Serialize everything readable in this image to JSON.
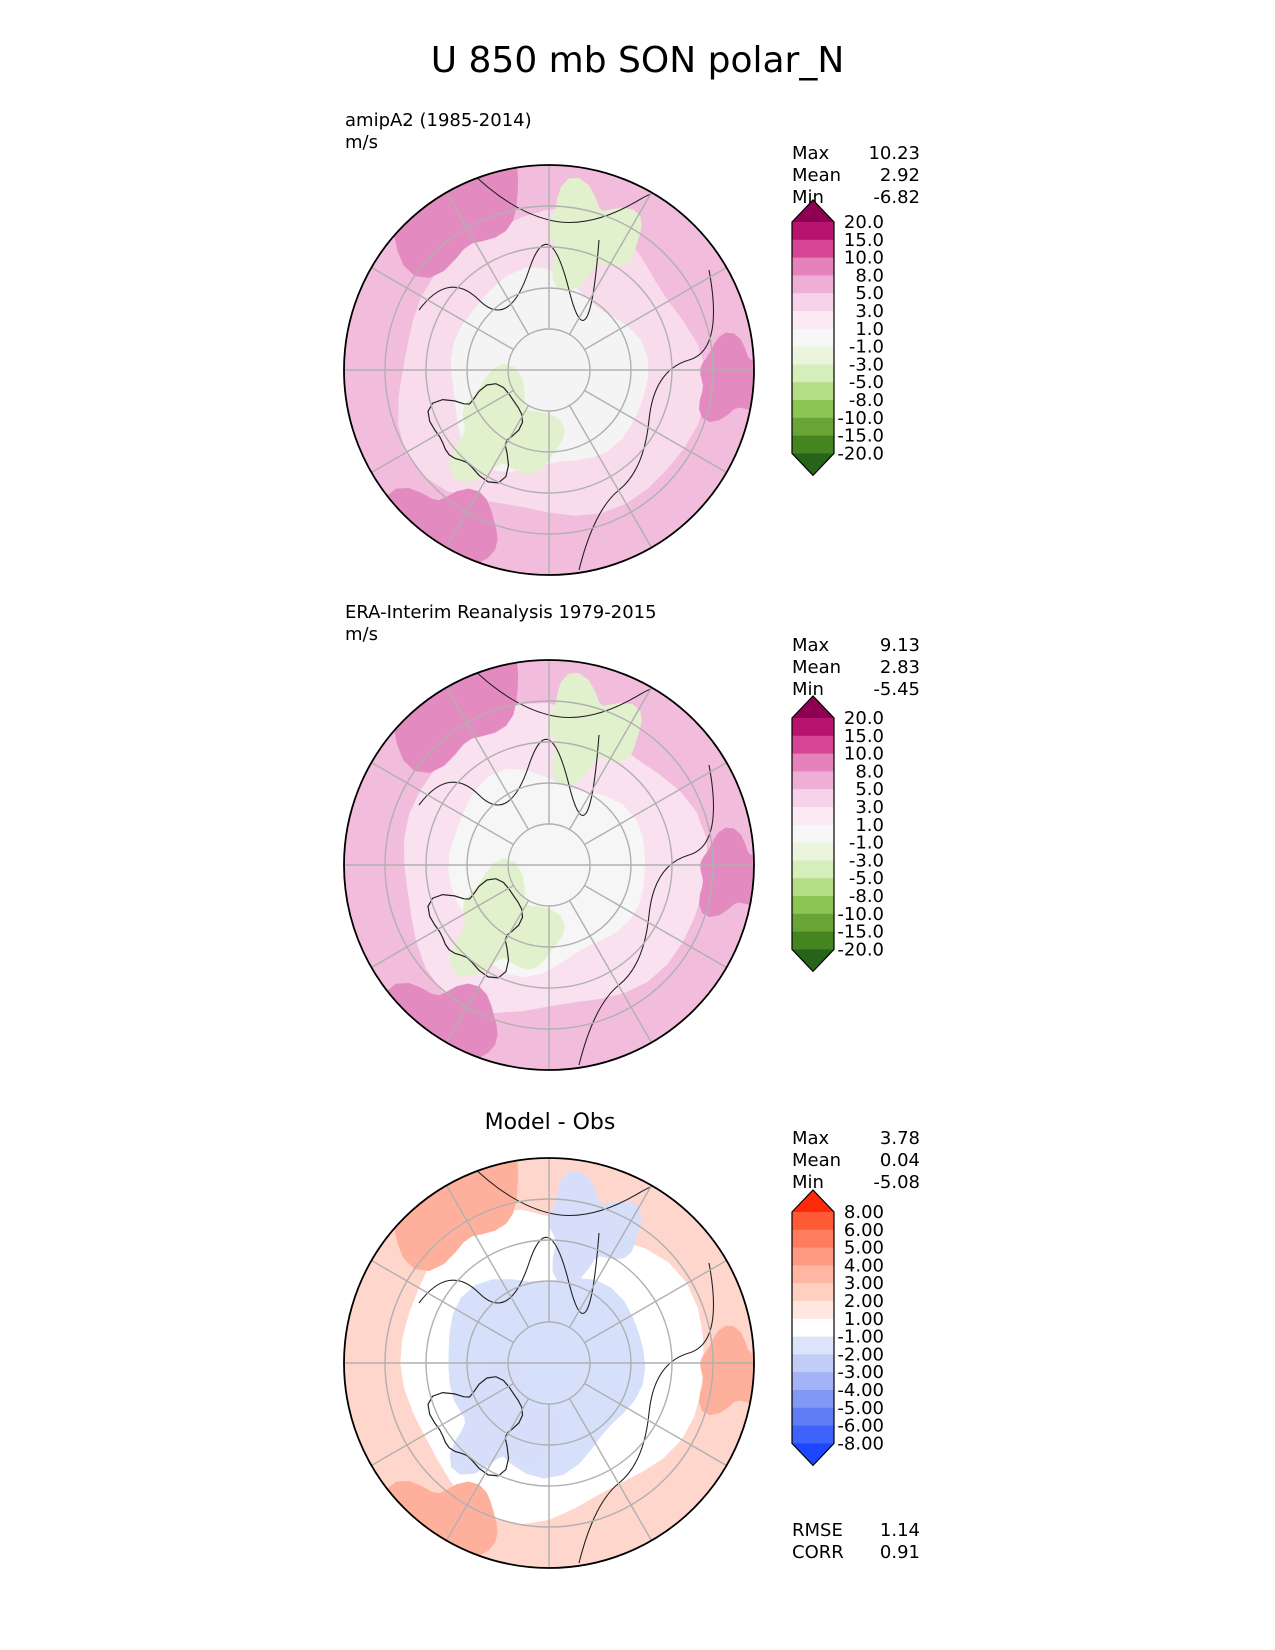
{
  "figure_title": "U 850 mb SON polar_N",
  "chart_data": [
    {
      "type": "polar_contour_map",
      "label": "amipA2 (1985-2014)",
      "units": "m/s",
      "stats": [
        {
          "name": "Max",
          "value": "10.23"
        },
        {
          "name": "Mean",
          "value": "2.92"
        },
        {
          "name": "Min",
          "value": "-6.82"
        }
      ],
      "colorbar": {
        "levels": [
          "20.0",
          "15.0",
          "10.0",
          "8.0",
          "5.0",
          "3.0",
          "1.0",
          "-1.0",
          "-3.0",
          "-5.0",
          "-8.0",
          "-10.0",
          "-15.0",
          "-20.0"
        ],
        "colors": [
          "#8e0152",
          "#b8136f",
          "#d64594",
          "#e582bc",
          "#eeaed5",
          "#f7d3ea",
          "#fbe9f3",
          "#f7f7f7",
          "#ebf5dc",
          "#d6eebb",
          "#b3de85",
          "#8dc552",
          "#68a535",
          "#44851f",
          "#276419"
        ],
        "extend": "both"
      },
      "fill_colors": {
        "outer": "#f2bddd",
        "mid": "#f8dcec",
        "inner": "#f4f4f4",
        "strong": "#e38bc0",
        "weak": "#e2f1cd"
      }
    },
    {
      "type": "polar_contour_map",
      "label": "ERA-Interim Reanalysis 1979-2015",
      "units": "m/s",
      "stats": [
        {
          "name": "Max",
          "value": "9.13"
        },
        {
          "name": "Mean",
          "value": "2.83"
        },
        {
          "name": "Min",
          "value": "-5.45"
        }
      ],
      "colorbar": {
        "levels": [
          "20.0",
          "15.0",
          "10.0",
          "8.0",
          "5.0",
          "3.0",
          "1.0",
          "-1.0",
          "-3.0",
          "-5.0",
          "-8.0",
          "-10.0",
          "-15.0",
          "-20.0"
        ],
        "colors": [
          "#8e0152",
          "#b8136f",
          "#d64594",
          "#e582bc",
          "#eeaed5",
          "#f7d3ea",
          "#fbe9f3",
          "#f7f7f7",
          "#ebf5dc",
          "#d6eebb",
          "#b3de85",
          "#8dc552",
          "#68a535",
          "#44851f",
          "#276419"
        ],
        "extend": "both"
      },
      "fill_colors": {
        "outer": "#f2bddd",
        "mid": "#f9e1ef",
        "inner": "#f6f6f6",
        "strong": "#e38bc0",
        "weak": "#e2f1cd"
      }
    },
    {
      "type": "polar_contour_map",
      "title": "Model - Obs",
      "stats": [
        {
          "name": "Max",
          "value": "3.78"
        },
        {
          "name": "Mean",
          "value": "0.04"
        },
        {
          "name": "Min",
          "value": "-5.08"
        }
      ],
      "extra_stats": [
        {
          "name": "RMSE",
          "value": "1.14"
        },
        {
          "name": "CORR",
          "value": "0.91"
        }
      ],
      "colorbar": {
        "levels": [
          "8.00",
          "6.00",
          "5.00",
          "4.00",
          "3.00",
          "2.00",
          "1.00",
          "-1.00",
          "-2.00",
          "-3.00",
          "-4.00",
          "-5.00",
          "-6.00",
          "-8.00"
        ],
        "colors": [
          "#ff2a0a",
          "#ff5a36",
          "#ff7c5e",
          "#ff9a82",
          "#ffb6a3",
          "#ffcfc2",
          "#ffe6df",
          "#ffffff",
          "#dde3fb",
          "#c1ccf7",
          "#a3b3f6",
          "#8198f5",
          "#5f7ef6",
          "#3d63fa",
          "#1d47ff"
        ],
        "extend": "both"
      },
      "fill_colors": {
        "outer": "#ffd6cc",
        "mid": "#ffffff",
        "inner": "#d6e0fb",
        "strong": "#ffb09c",
        "weak": "#d7defa"
      }
    }
  ]
}
